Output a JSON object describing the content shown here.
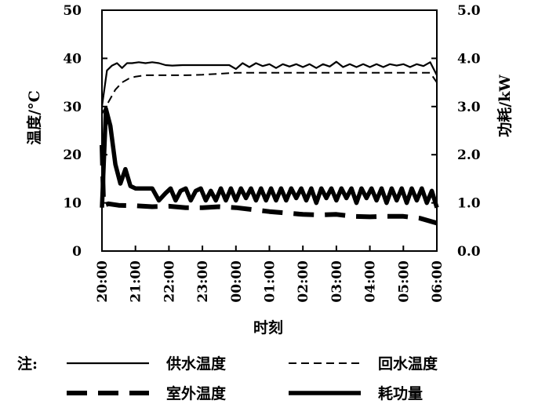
{
  "chart_data": {
    "type": "line",
    "xlabel": "时刻",
    "ylabel_left": "温度/°C",
    "ylabel_right": "功耗/kW",
    "ylim_left": [
      0,
      50
    ],
    "ylim_right": [
      0.0,
      5.0
    ],
    "yticks_left": [
      "0",
      "10",
      "20",
      "30",
      "40",
      "50"
    ],
    "yticks_right": [
      "0.0",
      "1.0",
      "2.0",
      "3.0",
      "4.0",
      "5.0"
    ],
    "xlim": [
      0,
      10
    ],
    "categories": [
      "20:00",
      "21:00",
      "22:00",
      "23:00",
      "00:00",
      "01:00",
      "02:00",
      "03:00",
      "04:00",
      "05:00",
      "06:00"
    ],
    "legend_note": "注:",
    "legend_placement": "bottom",
    "series": [
      {
        "name": "供水温度",
        "axis": "left",
        "style": "solid",
        "x": [
          0,
          0.15,
          0.3,
          0.45,
          0.6,
          0.75,
          0.9,
          1.1,
          1.3,
          1.5,
          1.7,
          1.9,
          2.1,
          2.4,
          2.7,
          3.0,
          3.2,
          3.4,
          3.6,
          3.8,
          4.0,
          4.2,
          4.4,
          4.6,
          4.8,
          5.0,
          5.2,
          5.4,
          5.6,
          5.8,
          6.0,
          6.2,
          6.4,
          6.6,
          6.8,
          7.0,
          7.2,
          7.4,
          7.6,
          7.8,
          8.0,
          8.2,
          8.4,
          8.6,
          8.8,
          9.0,
          9.2,
          9.4,
          9.6,
          9.8,
          10.0
        ],
        "values": [
          30,
          37.5,
          38.5,
          39,
          38,
          39,
          39,
          39.2,
          39,
          39.2,
          39,
          38.6,
          38.5,
          38.6,
          38.6,
          38.6,
          38.6,
          38.6,
          38.6,
          38.6,
          37.8,
          39,
          38.2,
          39,
          38.4,
          38.8,
          38,
          38.8,
          38.3,
          38.8,
          38.2,
          38.8,
          38,
          38.8,
          38.3,
          39.3,
          38.2,
          38.8,
          38.2,
          38.8,
          38.2,
          38.8,
          38.2,
          38.8,
          38.5,
          38.8,
          38.2,
          38.8,
          38.4,
          39.2,
          36.5
        ]
      },
      {
        "name": "回水温度",
        "axis": "left",
        "style": "dashed",
        "x": [
          0,
          0.2,
          0.4,
          0.6,
          0.8,
          1.0,
          1.3,
          1.6,
          2.0,
          2.5,
          3.0,
          3.5,
          4.0,
          5.0,
          6.0,
          7.0,
          8.0,
          9.0,
          9.5,
          9.8,
          10.0
        ],
        "values": [
          28.5,
          31,
          33.5,
          35,
          35.8,
          36.2,
          36.5,
          36.5,
          36.5,
          36.5,
          36.6,
          36.8,
          37,
          37,
          37,
          37,
          37,
          37,
          37,
          37,
          35
        ]
      },
      {
        "name": "室外温度",
        "axis": "left",
        "style": "long-dash",
        "x": [
          0,
          0.05,
          0.2,
          0.5,
          1.0,
          1.5,
          2.0,
          2.5,
          3.0,
          3.5,
          4.0,
          4.5,
          5.0,
          5.5,
          6.0,
          6.5,
          7.0,
          7.5,
          8.0,
          8.5,
          9.0,
          9.5,
          10.0
        ],
        "values": [
          22,
          9.5,
          9.8,
          9.5,
          9.4,
          9.2,
          9.3,
          9.0,
          9.0,
          9.2,
          9.0,
          8.6,
          8.2,
          7.9,
          7.6,
          7.5,
          7.6,
          7.2,
          7.1,
          7.2,
          7.2,
          6.8,
          5.8
        ]
      },
      {
        "name": "耗功量",
        "axis": "right",
        "style": "thick",
        "x": [
          0,
          0.12,
          0.25,
          0.4,
          0.55,
          0.7,
          0.85,
          1.0,
          1.15,
          1.3,
          1.5,
          1.7,
          1.9,
          2.05,
          2.2,
          2.35,
          2.5,
          2.65,
          2.8,
          2.95,
          3.1,
          3.25,
          3.4,
          3.55,
          3.7,
          3.85,
          4.0,
          4.15,
          4.3,
          4.45,
          4.6,
          4.75,
          4.9,
          5.05,
          5.2,
          5.35,
          5.5,
          5.65,
          5.8,
          5.95,
          6.1,
          6.25,
          6.4,
          6.55,
          6.7,
          6.85,
          7.0,
          7.15,
          7.3,
          7.45,
          7.6,
          7.75,
          7.9,
          8.05,
          8.2,
          8.35,
          8.5,
          8.65,
          8.8,
          8.95,
          9.1,
          9.25,
          9.4,
          9.55,
          9.7,
          9.85,
          10.0
        ],
        "values": [
          0.9,
          2.95,
          2.6,
          1.8,
          1.4,
          1.7,
          1.35,
          1.3,
          1.3,
          1.3,
          1.3,
          1.05,
          1.2,
          1.3,
          1.05,
          1.25,
          1.3,
          1.05,
          1.25,
          1.3,
          1.05,
          1.25,
          1.05,
          1.3,
          1.05,
          1.3,
          1.05,
          1.3,
          1.1,
          1.3,
          1.05,
          1.3,
          1.05,
          1.3,
          1.05,
          1.3,
          1.05,
          1.3,
          1.1,
          1.3,
          1.05,
          1.3,
          1.0,
          1.3,
          1.1,
          1.3,
          1.05,
          1.3,
          1.1,
          1.3,
          1.0,
          1.3,
          1.1,
          1.3,
          1.05,
          1.3,
          1.0,
          1.3,
          1.05,
          1.3,
          1.0,
          1.3,
          1.05,
          1.3,
          1.0,
          1.25,
          0.9
        ]
      }
    ]
  }
}
